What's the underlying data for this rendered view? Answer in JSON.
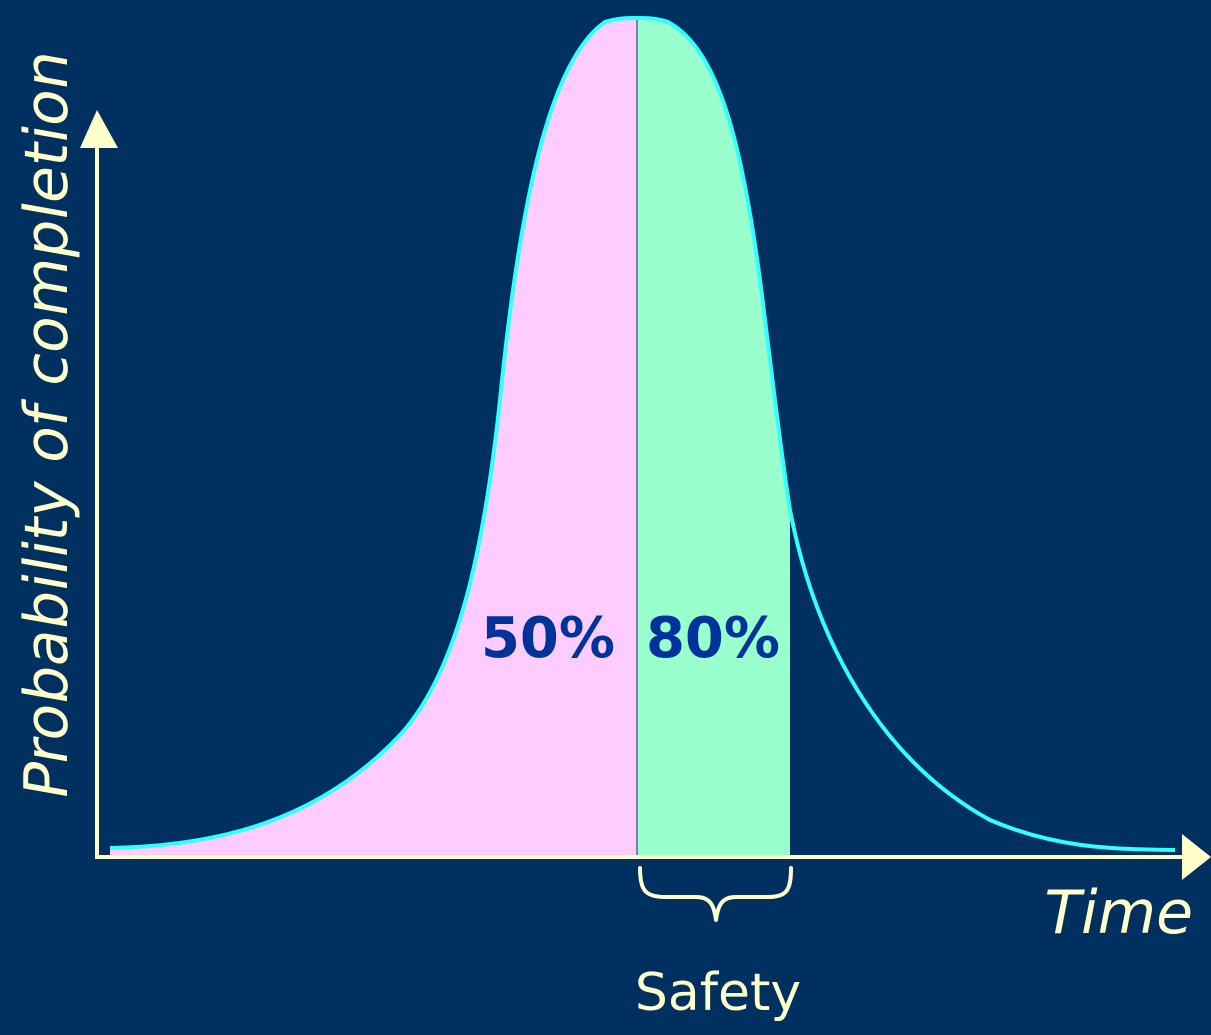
{
  "diagram": {
    "y_axis_label": "Probability of completion",
    "x_axis_label": "Time",
    "region_left_label": "50%",
    "region_right_label": "80%",
    "brace_label": "Safety"
  },
  "colors": {
    "background": "#003060",
    "axis": "#FFFFCC",
    "curve": "#33FFFF",
    "region_50": "#FFCCFF",
    "region_80": "#99FFCC",
    "region_text": "#003399",
    "label_text": "#FFFFCC"
  }
}
